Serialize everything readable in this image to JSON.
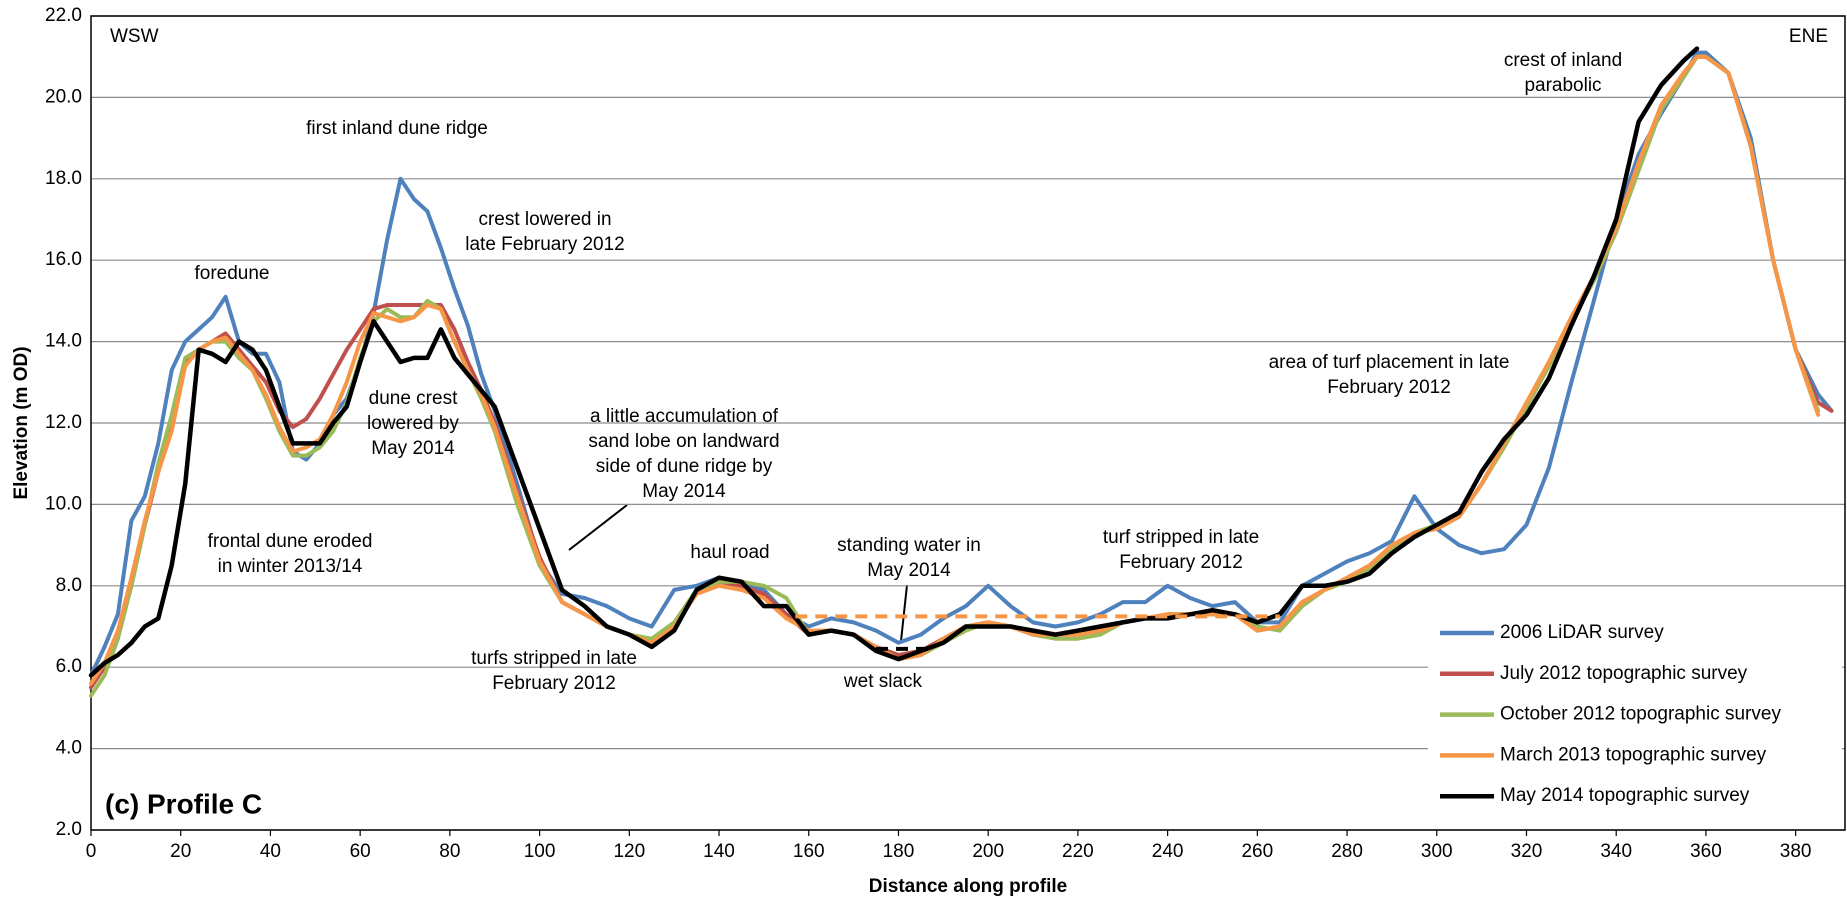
{
  "chart_data": {
    "type": "line",
    "x_label": "Distance along profile",
    "y_label": "Elevation (m OD)",
    "panel_label": "(c) Profile C",
    "direction_labels": [
      "WSW",
      "ENE"
    ],
    "xlim": [
      0,
      391
    ],
    "ylim": [
      2,
      22
    ],
    "xticks": [
      0,
      20,
      40,
      60,
      80,
      100,
      120,
      140,
      160,
      180,
      200,
      220,
      240,
      260,
      280,
      300,
      320,
      340,
      360,
      380
    ],
    "yticks": [
      {
        "value": 2,
        "label": "2.0"
      },
      {
        "value": 4,
        "label": "4.0"
      },
      {
        "value": 6,
        "label": "6.0"
      },
      {
        "value": 8,
        "label": "8.0"
      },
      {
        "value": 10,
        "label": "10.0"
      },
      {
        "value": 12,
        "label": "12.0"
      },
      {
        "value": 14,
        "label": "14.0"
      },
      {
        "value": 16,
        "label": "16.0"
      },
      {
        "value": 18,
        "label": "18.0"
      },
      {
        "value": 20,
        "label": "20.0"
      },
      {
        "value": 22,
        "label": "22.0"
      }
    ],
    "grid": true,
    "legend": "bottom-right",
    "x": [
      0,
      3,
      6,
      9,
      12,
      15,
      18,
      21,
      24,
      27,
      30,
      33,
      36,
      39,
      42,
      45,
      48,
      51,
      54,
      57,
      60,
      63,
      66,
      69,
      72,
      75,
      78,
      81,
      84,
      87,
      90,
      95,
      100,
      105,
      110,
      115,
      120,
      125,
      130,
      135,
      140,
      145,
      150,
      155,
      160,
      165,
      170,
      175,
      180,
      185,
      190,
      195,
      200,
      205,
      210,
      215,
      220,
      225,
      230,
      235,
      240,
      245,
      250,
      255,
      260,
      265,
      270,
      275,
      280,
      285,
      290,
      295,
      300,
      305,
      310,
      315,
      320,
      325,
      330,
      335,
      340,
      345,
      350,
      355,
      358,
      360,
      365,
      370,
      375,
      380,
      385,
      388
    ],
    "series": [
      {
        "name": "2006 LiDAR survey",
        "color": "#4f81bd",
        "values": [
          5.8,
          6.5,
          7.3,
          9.6,
          10.2,
          11.5,
          13.3,
          14.0,
          14.3,
          14.6,
          15.1,
          14.0,
          13.7,
          13.7,
          13.0,
          11.3,
          11.1,
          11.5,
          12.2,
          12.6,
          13.5,
          14.7,
          16.5,
          18.0,
          17.5,
          17.2,
          16.3,
          15.3,
          14.4,
          13.2,
          12.3,
          10.5,
          8.6,
          7.8,
          7.7,
          7.5,
          7.2,
          7.0,
          7.9,
          8.0,
          8.2,
          8.1,
          7.9,
          7.3,
          7.0,
          7.2,
          7.1,
          6.9,
          6.6,
          6.8,
          7.2,
          7.5,
          8.0,
          7.5,
          7.1,
          7.0,
          7.1,
          7.3,
          7.6,
          7.6,
          8.0,
          7.7,
          7.5,
          7.6,
          7.1,
          7.1,
          8.0,
          8.3,
          8.6,
          8.8,
          9.1,
          10.2,
          9.4,
          9.0,
          8.8,
          8.9,
          9.5,
          10.9,
          13.0,
          15.0,
          17.0,
          18.6,
          19.6,
          20.5,
          21.1,
          21.1,
          20.6,
          19.0,
          16.0,
          13.8,
          12.7,
          12.3
        ]
      },
      {
        "name": "July 2012 topographic survey",
        "color": "#c0504d",
        "values": [
          5.5,
          6.0,
          6.8,
          8.0,
          9.5,
          10.8,
          12.0,
          13.5,
          13.8,
          14.0,
          14.2,
          13.8,
          13.4,
          13.0,
          12.3,
          11.9,
          12.1,
          12.6,
          13.2,
          13.8,
          14.3,
          14.8,
          14.9,
          14.9,
          14.9,
          14.9,
          14.9,
          14.3,
          13.5,
          12.8,
          12.0,
          10.3,
          8.7,
          7.6,
          7.3,
          7.0,
          6.8,
          6.6,
          7.0,
          7.9,
          8.1,
          8.0,
          7.8,
          7.3,
          6.8,
          6.9,
          6.8,
          6.5,
          6.3,
          6.4,
          6.7,
          7.0,
          7.1,
          7.0,
          6.8,
          6.8,
          6.8,
          6.9,
          7.1,
          7.2,
          7.3,
          7.3,
          7.3,
          7.3,
          6.9,
          7.0,
          7.6,
          7.9,
          8.2,
          8.5,
          8.9,
          9.3,
          9.4,
          9.7,
          10.5,
          11.5,
          12.4,
          13.4,
          14.5,
          15.5,
          16.7,
          18.3,
          19.7,
          20.5,
          21.0,
          21.0,
          20.6,
          18.8,
          16.0,
          13.8,
          12.5,
          12.3
        ]
      },
      {
        "name": "October 2012 topographic survey",
        "color": "#9bbb59",
        "values": [
          5.3,
          5.8,
          6.7,
          8.0,
          9.5,
          11.0,
          12.2,
          13.6,
          13.8,
          14.0,
          14.0,
          13.6,
          13.3,
          12.6,
          11.8,
          11.2,
          11.2,
          11.4,
          11.8,
          12.5,
          13.6,
          14.5,
          14.8,
          14.6,
          14.6,
          15.0,
          14.8,
          14.0,
          13.3,
          12.6,
          11.8,
          10.0,
          8.5,
          7.6,
          7.3,
          7.0,
          6.8,
          6.7,
          7.1,
          7.9,
          8.1,
          8.1,
          8.0,
          7.7,
          6.8,
          6.9,
          6.8,
          6.4,
          6.2,
          6.3,
          6.6,
          6.9,
          7.1,
          7.0,
          6.8,
          6.7,
          6.7,
          6.8,
          7.1,
          7.2,
          7.3,
          7.3,
          7.3,
          7.3,
          7.0,
          6.9,
          7.5,
          7.9,
          8.1,
          8.4,
          8.9,
          9.3,
          9.5,
          9.7,
          10.5,
          11.4,
          12.4,
          13.4,
          14.5,
          15.5,
          16.7,
          18.2,
          19.7,
          20.5,
          21.0,
          21.0,
          20.6,
          18.8,
          16.0,
          13.8,
          12.3,
          null
        ]
      },
      {
        "name": "March 2013 topographic survey",
        "color": "#f79646",
        "values": [
          5.6,
          6.1,
          6.9,
          8.2,
          9.6,
          10.8,
          11.8,
          13.4,
          13.8,
          14.0,
          14.1,
          13.7,
          13.3,
          12.7,
          11.9,
          11.3,
          11.4,
          11.6,
          12.2,
          13.0,
          14.0,
          14.7,
          14.6,
          14.5,
          14.6,
          14.9,
          14.8,
          14.0,
          13.3,
          12.7,
          11.9,
          10.2,
          8.6,
          7.6,
          7.3,
          7.0,
          6.8,
          6.6,
          7.0,
          7.8,
          8.0,
          7.9,
          7.7,
          7.2,
          6.9,
          6.9,
          6.8,
          6.5,
          6.2,
          6.3,
          6.7,
          7.0,
          7.1,
          7.0,
          6.8,
          6.8,
          6.8,
          6.9,
          7.1,
          7.2,
          7.3,
          7.3,
          7.3,
          7.3,
          6.9,
          7.0,
          7.6,
          7.9,
          8.2,
          8.5,
          9.0,
          9.3,
          9.4,
          9.7,
          10.5,
          11.5,
          12.5,
          13.5,
          14.6,
          15.6,
          16.8,
          18.4,
          19.8,
          20.6,
          21.0,
          21.0,
          20.6,
          18.8,
          16.0,
          13.8,
          12.2,
          null
        ]
      },
      {
        "name": "May 2014 topographic survey",
        "color": "#000000",
        "values": [
          5.8,
          6.1,
          6.3,
          6.6,
          7.0,
          7.2,
          8.5,
          10.5,
          13.8,
          13.7,
          13.5,
          14.0,
          13.8,
          13.3,
          12.4,
          11.5,
          11.5,
          11.5,
          12.0,
          12.4,
          13.5,
          14.5,
          14.0,
          13.5,
          13.6,
          13.6,
          14.3,
          13.6,
          13.2,
          12.8,
          12.4,
          10.9,
          9.4,
          7.9,
          7.5,
          7.0,
          6.8,
          6.5,
          6.9,
          7.9,
          8.2,
          8.1,
          7.5,
          7.5,
          6.8,
          6.9,
          6.8,
          6.4,
          6.2,
          6.4,
          6.6,
          7.0,
          7.0,
          7.0,
          6.9,
          6.8,
          6.9,
          7.0,
          7.1,
          7.2,
          7.2,
          7.3,
          7.4,
          7.3,
          7.1,
          7.3,
          8.0,
          8.0,
          8.1,
          8.3,
          8.8,
          9.2,
          9.5,
          9.8,
          10.8,
          11.6,
          12.2,
          13.1,
          14.4,
          15.6,
          17.0,
          19.4,
          20.3,
          20.9,
          21.2,
          null,
          null,
          null,
          null,
          null,
          null,
          null
        ]
      }
    ],
    "water_levels": [
      {
        "color": "#f79646",
        "y": 7.25,
        "x": [
          157,
          265
        ]
      },
      {
        "color": "#000000",
        "y": 6.45,
        "x": [
          175,
          187
        ]
      }
    ],
    "annotations": [
      [
        "foredune"
      ],
      [
        "first inland dune ridge"
      ],
      [
        "crest lowered in",
        "late February 2012"
      ],
      [
        "dune crest",
        "lowered by",
        "May 2014"
      ],
      [
        "frontal dune eroded",
        "in winter 2013/14"
      ],
      [
        "a little accumulation of",
        "sand lobe on landward",
        "side of dune ridge by",
        "May 2014"
      ],
      [
        "haul road"
      ],
      [
        "standing water in",
        "May 2014"
      ],
      [
        "turfs stripped in late",
        "February 2012"
      ],
      [
        "wet slack"
      ],
      [
        "turf stripped in late",
        "February 2012"
      ],
      [
        "area of turf placement in late",
        "February 2012"
      ],
      [
        "crest of inland",
        "parabolic"
      ]
    ]
  }
}
